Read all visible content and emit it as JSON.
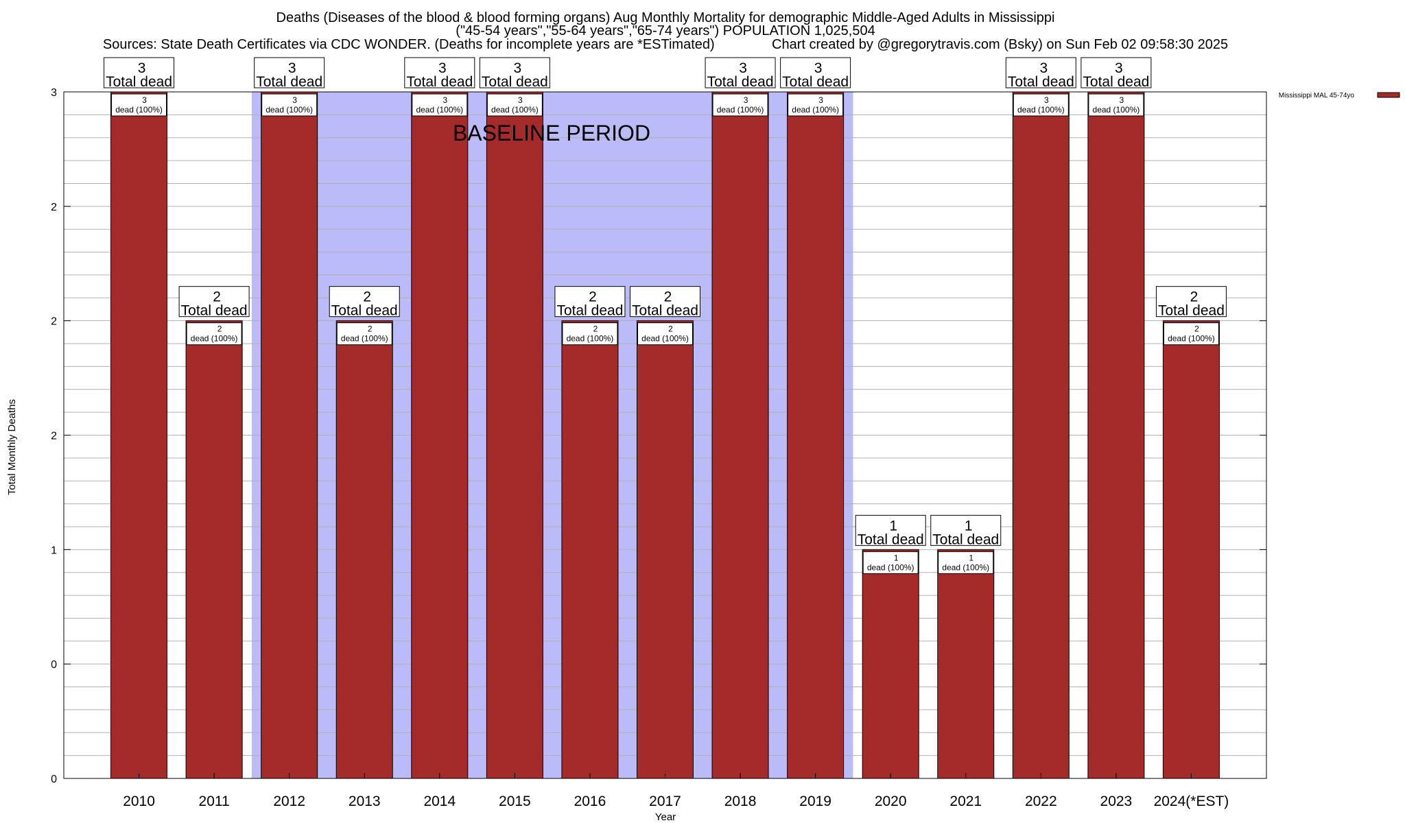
{
  "title": {
    "line1": "Deaths (Diseases of the blood & blood forming organs) Aug Monthly Mortality for demographic Middle-Aged Adults in Mississippi",
    "line2": "(\"45-54 years\",\"55-64 years\",\"65-74 years\") POPULATION 1,025,504",
    "line3": "Sources: State Death Certificates via CDC WONDER. (Deaths for incomplete years are *ESTimated)               Chart created by @gregorytravis.com (Bsky) on Sun Feb 02 09:58:30 2025"
  },
  "colors": {
    "bar": "#a52a2a",
    "baseline_shade": "#bbbbf9",
    "grid": "#b0b0b0"
  },
  "chart_data": {
    "type": "bar",
    "title": "Deaths (Diseases of the blood & blood forming organs) Aug Monthly Mortality for demographic Middle-Aged Adults in Mississippi",
    "xlabel": "Year",
    "ylabel": "Total Monthly Deaths",
    "categories": [
      "2010",
      "2011",
      "2012",
      "2013",
      "2014",
      "2015",
      "2016",
      "2017",
      "2018",
      "2019",
      "2020",
      "2021",
      "2022",
      "2023",
      "2024(*EST)"
    ],
    "series": [
      {
        "name": "Mississippi MAL 45-74yo",
        "values": [
          3,
          2,
          3,
          2,
          3,
          3,
          2,
          2,
          3,
          3,
          1,
          1,
          3,
          3,
          2
        ]
      }
    ],
    "total_labels": [
      "3",
      "2",
      "3",
      "2",
      "3",
      "3",
      "2",
      "2",
      "3",
      "3",
      "1",
      "1",
      "3",
      "3",
      "2"
    ],
    "total_label_text": "Total dead",
    "bar_labels": [
      "3",
      "2",
      "3",
      "2",
      "3",
      "3",
      "2",
      "2",
      "3",
      "3",
      "1",
      "1",
      "3",
      "3",
      "2"
    ],
    "bar_label_text": "dead (100%)",
    "ylim": [
      0,
      3
    ],
    "ytick_values": [
      0,
      0.5,
      1,
      1.5,
      2,
      2.5,
      3
    ],
    "ytick_labels": [
      "0",
      "0",
      "1",
      "2",
      "2",
      "2",
      "3"
    ],
    "minor_grid_per_major": 5,
    "baseline_period": {
      "label": "BASELINE PERIOD",
      "from": "2012",
      "to": "2019"
    },
    "grid": true,
    "legend": {
      "position": "top-right",
      "entries": [
        "Mississippi MAL 45-74yo"
      ]
    }
  }
}
